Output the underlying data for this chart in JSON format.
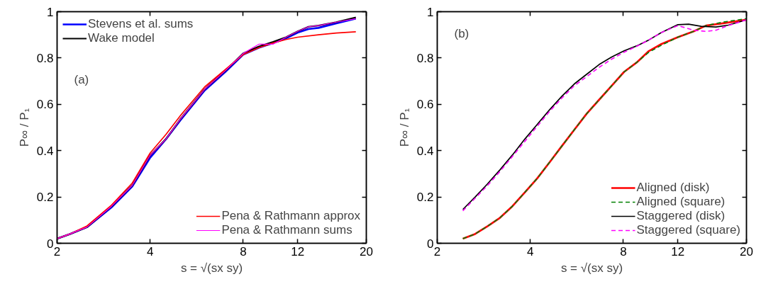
{
  "chart_data": [
    {
      "type": "line",
      "xlabel": "s = √(sx sy)",
      "ylabel": "P∞ / P₁",
      "log": "x",
      "grid": false,
      "legend": [
        "top left",
        "top left",
        "bottom right",
        "bottom right"
      ],
      "line_style": "solid",
      "marker": "none",
      "xlim": [
        2,
        20
      ],
      "xticks": [
        2,
        4,
        8,
        12,
        20
      ],
      "ylim": [
        0,
        1
      ],
      "yticks": [
        0,
        0.2,
        0.4,
        0.6,
        0.8,
        1
      ],
      "annotations": [
        "(a)"
      ],
      "series": [
        {
          "name": "Stevens et al. sums",
          "color": "#0000ff",
          "x": [
            2,
            2.2,
            2.5,
            3,
            3.5,
            4,
            4.5,
            5,
            6,
            7,
            8,
            9,
            10,
            11,
            12,
            13,
            14,
            16,
            18.5
          ],
          "values": [
            0.02,
            0.04,
            0.07,
            0.155,
            0.245,
            0.37,
            0.45,
            0.53,
            0.66,
            0.74,
            0.815,
            0.845,
            0.865,
            0.885,
            0.91,
            0.925,
            0.93,
            0.95,
            0.97
          ]
        },
        {
          "name": "Wake model",
          "color": "#000000",
          "x": [
            2,
            2.2,
            2.5,
            3,
            3.5,
            4,
            4.5,
            5,
            6,
            7,
            8,
            9,
            10,
            11,
            12,
            13,
            14,
            16,
            18.5
          ],
          "values": [
            0.02,
            0.04,
            0.07,
            0.16,
            0.25,
            0.38,
            0.45,
            0.535,
            0.665,
            0.745,
            0.82,
            0.85,
            0.87,
            0.89,
            0.915,
            0.935,
            0.94,
            0.955,
            0.975
          ]
        },
        {
          "name": "Pena & Rathmann approx",
          "color": "#ff0000",
          "x": [
            2,
            2.2,
            2.5,
            3,
            3.5,
            4,
            4.5,
            5,
            6,
            7,
            8,
            9,
            10,
            11,
            12,
            14,
            16,
            18.5
          ],
          "values": [
            0.02,
            0.04,
            0.075,
            0.165,
            0.26,
            0.39,
            0.47,
            0.55,
            0.675,
            0.75,
            0.815,
            0.845,
            0.865,
            0.88,
            0.89,
            0.9,
            0.908,
            0.913
          ]
        },
        {
          "name": "Pena & Rathmann sums",
          "color": "#ff00ff",
          "x": [
            2,
            2.2,
            2.5,
            3,
            3.5,
            4,
            4.5,
            5,
            6,
            7,
            8,
            9,
            10,
            11,
            12,
            13,
            14,
            16,
            18.5
          ],
          "values": [
            0.02,
            0.04,
            0.07,
            0.16,
            0.25,
            0.38,
            0.45,
            0.535,
            0.665,
            0.745,
            0.82,
            0.86,
            0.86,
            0.89,
            0.915,
            0.935,
            0.94,
            0.955,
            0.97
          ]
        }
      ]
    },
    {
      "type": "line",
      "xlabel": "s = √(sx sy)",
      "ylabel": "P∞ / P₁",
      "log": "x",
      "grid": false,
      "legend": "bottom right",
      "marker": "none",
      "xlim": [
        2,
        20
      ],
      "xticks": [
        2,
        4,
        8,
        12,
        20
      ],
      "ylim": [
        0,
        1
      ],
      "yticks": [
        0,
        0.2,
        0.4,
        0.6,
        0.8,
        1
      ],
      "annotations": [
        "(b)"
      ],
      "series": [
        {
          "name": "Aligned (disk)",
          "color": "#ff0000",
          "line_style": "solid",
          "x": [
            2.42,
            2.65,
            2.91,
            3.19,
            3.5,
            3.84,
            4.21,
            4.62,
            5.06,
            5.55,
            6.09,
            6.68,
            7.33,
            8.04,
            8.82,
            9.67,
            10.61,
            12,
            13.5,
            14.8,
            16.8,
            20
          ],
          "values": [
            0.02,
            0.04,
            0.074,
            0.11,
            0.16,
            0.22,
            0.28,
            0.35,
            0.42,
            0.49,
            0.56,
            0.62,
            0.68,
            0.74,
            0.78,
            0.83,
            0.86,
            0.89,
            0.915,
            0.94,
            0.95,
            0.965
          ]
        },
        {
          "name": "Aligned (square)",
          "color": "#008000",
          "line_style": "dashed",
          "x": [
            2.42,
            2.65,
            2.91,
            3.19,
            3.5,
            3.84,
            4.21,
            4.62,
            5.06,
            5.55,
            6.09,
            6.68,
            7.33,
            8.04,
            8.82,
            9.67,
            10.61,
            12,
            13.5,
            14.8,
            16.8,
            20
          ],
          "values": [
            0.02,
            0.04,
            0.074,
            0.11,
            0.16,
            0.22,
            0.28,
            0.35,
            0.42,
            0.49,
            0.56,
            0.62,
            0.68,
            0.74,
            0.78,
            0.825,
            0.855,
            0.89,
            0.915,
            0.94,
            0.955,
            0.97
          ]
        },
        {
          "name": "Staggered (disk)",
          "color": "#000000",
          "line_style": "solid",
          "x": [
            2.42,
            2.65,
            2.91,
            3.19,
            3.5,
            3.84,
            4.21,
            4.62,
            5.06,
            5.55,
            6.09,
            6.68,
            7.33,
            8.04,
            8.82,
            9.67,
            10.61,
            12,
            13,
            14.26,
            15.93,
            17.47,
            20
          ],
          "values": [
            0.146,
            0.199,
            0.257,
            0.317,
            0.381,
            0.45,
            0.513,
            0.577,
            0.635,
            0.688,
            0.73,
            0.772,
            0.804,
            0.831,
            0.852,
            0.878,
            0.91,
            0.944,
            0.946,
            0.937,
            0.934,
            0.942,
            0.965
          ]
        },
        {
          "name": "Staggered (square)",
          "color": "#ff00ff",
          "line_style": "dashed",
          "x": [
            2.42,
            2.65,
            2.91,
            3.19,
            3.5,
            3.84,
            4.21,
            4.62,
            5.06,
            5.55,
            6.09,
            6.68,
            7.33,
            8.04,
            8.82,
            9.67,
            10.61,
            12,
            13.5,
            14.8,
            15.93,
            17.47,
            20
          ],
          "values": [
            0.14,
            0.194,
            0.25,
            0.31,
            0.375,
            0.44,
            0.505,
            0.57,
            0.627,
            0.68,
            0.72,
            0.76,
            0.795,
            0.825,
            0.85,
            0.878,
            0.91,
            0.94,
            0.92,
            0.915,
            0.92,
            0.94,
            0.965
          ]
        }
      ]
    }
  ]
}
